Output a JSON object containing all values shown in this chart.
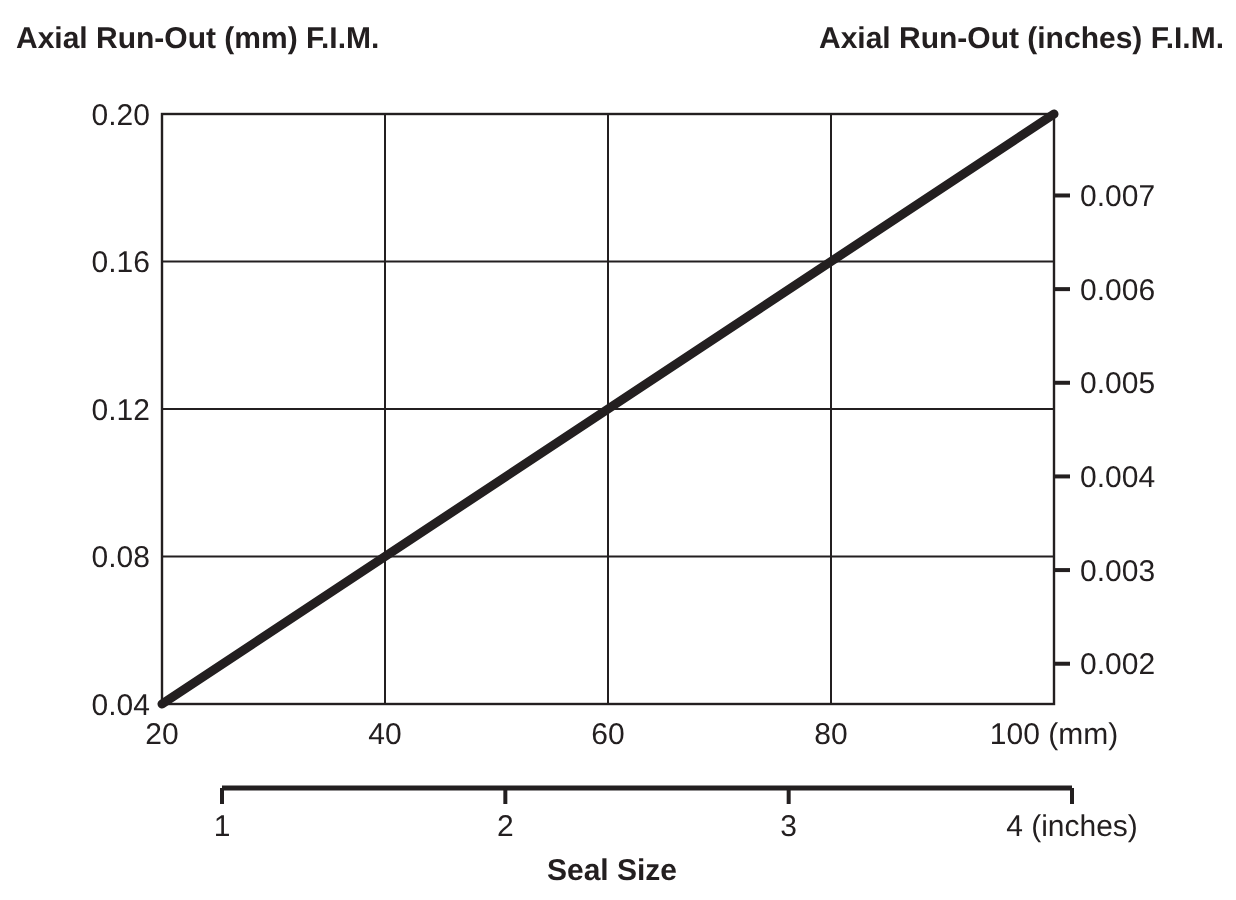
{
  "chart_data": {
    "type": "line",
    "xlabel": "Seal Size",
    "ylabel": "Axial Run-Out (mm) F.I.M.",
    "y2label": "Axial Run-Out (inches) F.I.M.",
    "x": [
      20,
      100
    ],
    "series": [
      {
        "color": "#231f20",
        "values": [
          0.04,
          0.2
        ]
      }
    ],
    "xlim": [
      20,
      100
    ],
    "xticks": [
      20,
      40,
      60,
      80,
      {
        "value": 100,
        "label": "100 (mm)"
      }
    ],
    "x2lim": [
      1,
      4
    ],
    "x2ticks": [
      1,
      2,
      3,
      {
        "value": 4,
        "label": "4 (inches)"
      }
    ],
    "ylim": [
      0.04,
      0.2
    ],
    "yticks": [
      {
        "value": 0.04,
        "label": "0.04"
      },
      {
        "value": 0.08,
        "label": "0.08"
      },
      {
        "value": 0.12,
        "label": "0.12"
      },
      {
        "value": 0.16,
        "label": "0.16"
      },
      {
        "value": 0.2,
        "label": "0.20"
      }
    ],
    "y2lim": [
      0.00157,
      0.00787
    ],
    "y2ticks": [
      0.002,
      0.003,
      0.004,
      0.005,
      0.006,
      0.007
    ],
    "grid": true,
    "marker": "none",
    "line_style": "solid"
  }
}
